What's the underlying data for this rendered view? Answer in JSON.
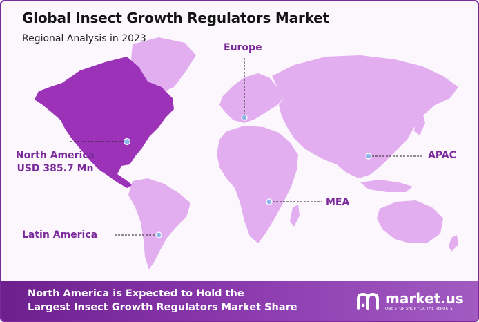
{
  "header": {
    "title": "Global Insect Growth Regulators Market",
    "subtitle": "Regional Analysis in 2023"
  },
  "colors": {
    "accent": "#7b2a9b",
    "highlight_region": "#9b32b8",
    "other_regions": "#e3aef0",
    "marker": "#8fb6ea"
  },
  "regions": [
    {
      "name": "North America",
      "value": "USD 385.7 Mn",
      "highlighted": true
    },
    {
      "name": "Europe",
      "highlighted": false
    },
    {
      "name": "APAC",
      "highlighted": false
    },
    {
      "name": "MEA",
      "highlighted": false
    },
    {
      "name": "Latin America",
      "highlighted": false
    }
  ],
  "footer": {
    "line1": "North America is Expected to Hold the",
    "line2": "Largest Insect Growth Regulators Market Share"
  },
  "logo": {
    "name": "market.us",
    "tagline": "ONE STOP SHOP FOR THE REPORTS"
  }
}
